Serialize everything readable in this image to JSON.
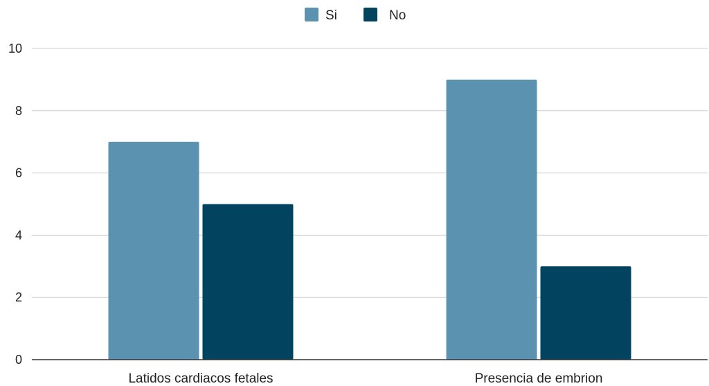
{
  "chart_data": {
    "type": "bar",
    "title": "",
    "xlabel": "",
    "ylabel": "",
    "categories": [
      "Latidos cardiacos fetales",
      "Presencia de embrion"
    ],
    "series": [
      {
        "name": "Si",
        "values": [
          7,
          9
        ],
        "color": "#5b92b0"
      },
      {
        "name": "No",
        "values": [
          5,
          3
        ],
        "color": "#02435f"
      }
    ],
    "ylim": [
      0,
      10
    ],
    "yticks": [
      "0",
      "2",
      "4",
      "6",
      "8",
      "10"
    ],
    "grid": true,
    "legend_position": "top-center",
    "colors": {
      "gridline": "#cccccc",
      "axis": "#333333",
      "text": "#222222"
    }
  }
}
